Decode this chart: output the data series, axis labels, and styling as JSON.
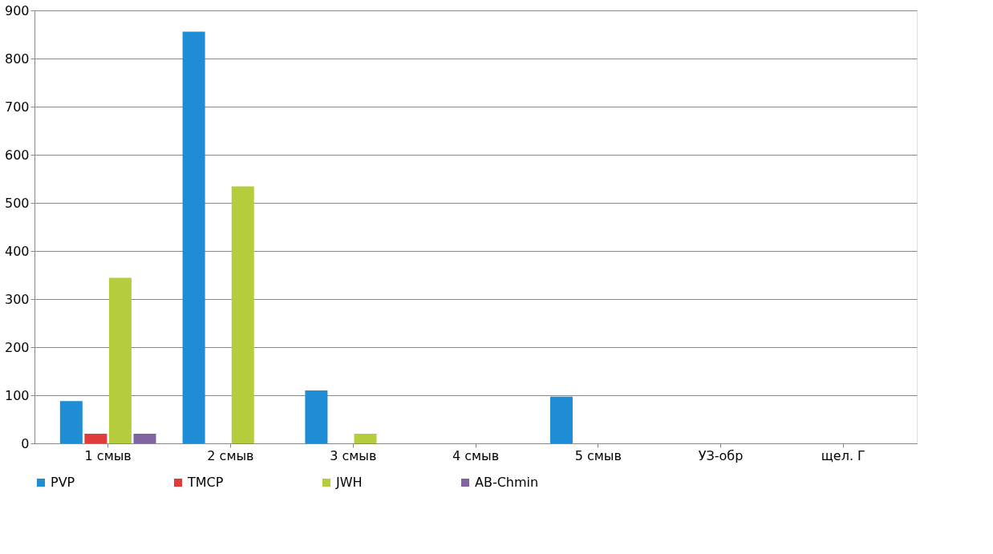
{
  "chart_data": {
    "type": "bar",
    "categories": [
      "1 смыв",
      "2 смыв",
      "3 смыв",
      "4 смыв",
      "5 смыв",
      "УЗ-обр",
      "щел. Г"
    ],
    "series": [
      {
        "name": "PVP",
        "color": "#1f8dd6",
        "values": [
          88,
          856,
          110,
          null,
          97,
          null,
          null
        ]
      },
      {
        "name": "TMCP",
        "color": "#e03c3c",
        "values": [
          20,
          null,
          null,
          null,
          null,
          null,
          null
        ]
      },
      {
        "name": "JWH",
        "color": "#b5cc3c",
        "values": [
          344,
          534,
          20,
          null,
          null,
          null,
          null
        ]
      },
      {
        "name": "AB-Chmin",
        "color": "#8064a2",
        "values": [
          20,
          null,
          null,
          null,
          null,
          null,
          null
        ]
      }
    ],
    "ylim": [
      0,
      900
    ],
    "yticks": [
      0,
      100,
      200,
      300,
      400,
      500,
      600,
      700,
      800,
      900
    ],
    "grid": "y",
    "legend": "bottom"
  }
}
